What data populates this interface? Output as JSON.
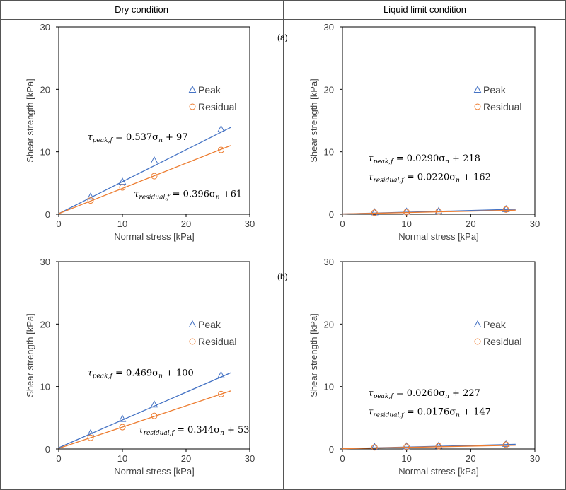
{
  "headers": {
    "left": "Dry condition",
    "right": "Liquid limit condition"
  },
  "row_labels": [
    "(a)",
    "(b)"
  ],
  "colors": {
    "peak": "#4472C4",
    "residual": "#ED7D31",
    "grid": "#808080"
  },
  "chart_data": [
    {
      "id": "a-dry",
      "type": "scatter",
      "xlabel": "Normal stress [kPa]",
      "ylabel": "Shear strength [kPa]",
      "xlim": [
        0,
        30
      ],
      "ylim": [
        0,
        30
      ],
      "xticks": [
        "0",
        "10",
        "20",
        "30"
      ],
      "yticks": [
        "0",
        "10",
        "20",
        "30"
      ],
      "legend": [
        "Peak",
        "Residual"
      ],
      "legend_position": "upper-right",
      "series": [
        {
          "name": "Peak",
          "marker": "triangle",
          "x": [
            5,
            10,
            15,
            25.5
          ],
          "y": [
            2.8,
            5.2,
            8.6,
            13.6
          ],
          "fit": {
            "x": [
              0,
              27
            ],
            "y": [
              0.1,
              13.9
            ]
          }
        },
        {
          "name": "Residual",
          "marker": "circle",
          "x": [
            5,
            10,
            15,
            25.5
          ],
          "y": [
            2.2,
            4.3,
            6.1,
            10.3
          ],
          "fit": {
            "x": [
              0,
              27
            ],
            "y": [
              0.1,
              11.0
            ]
          }
        }
      ],
      "equations": [
        {
          "sym": "τ",
          "sub": "peak,f",
          "rhs": " = 0.537σ",
          "n": "n",
          "tail": " + 97",
          "at": [
            4.5,
            11.9
          ]
        },
        {
          "sym": "τ",
          "sub": "residual,f",
          "rhs": " = 0.396σ",
          "n": "n",
          "tail": " +61",
          "at": [
            11.8,
            2.8
          ]
        }
      ]
    },
    {
      "id": "a-liquid",
      "type": "scatter",
      "xlabel": "Normal stress [kPa]",
      "ylabel": "Shear strength [kPa]",
      "xlim": [
        0,
        30
      ],
      "ylim": [
        0,
        30
      ],
      "xticks": [
        "0",
        "10",
        "20",
        "30"
      ],
      "yticks": [
        "0",
        "10",
        "20",
        "30"
      ],
      "legend": [
        "Peak",
        "Residual"
      ],
      "legend_position": "upper-right",
      "series": [
        {
          "name": "Peak",
          "marker": "triangle",
          "x": [
            5,
            10,
            15,
            25.5
          ],
          "y": [
            0.3,
            0.4,
            0.5,
            0.8
          ],
          "fit": {
            "x": [
              0,
              27
            ],
            "y": [
              0.05,
              0.8
            ]
          }
        },
        {
          "name": "Residual",
          "marker": "circle",
          "x": [
            5,
            10,
            15,
            25.5
          ],
          "y": [
            0.25,
            0.35,
            0.45,
            0.75
          ],
          "fit": {
            "x": [
              0,
              27
            ],
            "y": [
              0.05,
              0.65
            ]
          }
        }
      ],
      "equations": [
        {
          "sym": "τ",
          "sub": "peak,f",
          "rhs": " = 0.0290σ",
          "n": "n",
          "tail": " + 218",
          "at": [
            4,
            8.5
          ]
        },
        {
          "sym": "τ",
          "sub": "residual,f",
          "rhs": " = 0.0220σ",
          "n": "n",
          "tail": " + 162",
          "at": [
            4,
            5.5
          ]
        }
      ]
    },
    {
      "id": "b-dry",
      "type": "scatter",
      "xlabel": "Normal stress [kPa]",
      "ylabel": "Shear strength [kPa]",
      "xlim": [
        0,
        30
      ],
      "ylim": [
        0,
        30
      ],
      "xticks": [
        "0",
        "10",
        "20",
        "30"
      ],
      "yticks": [
        "0",
        "10",
        "20",
        "30"
      ],
      "legend": [
        "Peak",
        "Residual"
      ],
      "legend_position": "upper-right",
      "series": [
        {
          "name": "Peak",
          "marker": "triangle",
          "x": [
            5,
            10,
            15,
            25.5
          ],
          "y": [
            2.5,
            4.8,
            7.1,
            11.8
          ],
          "fit": {
            "x": [
              0,
              27
            ],
            "y": [
              0.2,
              12.2
            ]
          }
        },
        {
          "name": "Residual",
          "marker": "circle",
          "x": [
            5,
            10,
            15,
            25.5
          ],
          "y": [
            1.8,
            3.5,
            5.3,
            8.8
          ],
          "fit": {
            "x": [
              0,
              27
            ],
            "y": [
              0.1,
              9.3
            ]
          }
        }
      ],
      "equations": [
        {
          "sym": "τ",
          "sub": "peak,f",
          "rhs": " = 0.469σ",
          "n": "n",
          "tail": " + 100",
          "at": [
            4.5,
            11.7
          ]
        },
        {
          "sym": "τ",
          "sub": "residual,f",
          "rhs": " = 0.344σ",
          "n": "n",
          "tail": " + 53",
          "at": [
            12.5,
            2.6
          ]
        }
      ]
    },
    {
      "id": "b-liquid",
      "type": "scatter",
      "xlabel": "Normal stress [kPa]",
      "ylabel": "Shear strength [kPa]",
      "xlim": [
        0,
        30
      ],
      "ylim": [
        0,
        30
      ],
      "xticks": [
        "0",
        "10",
        "20",
        "30"
      ],
      "yticks": [
        "0",
        "10",
        "20",
        "30"
      ],
      "legend": [
        "Peak",
        "Residual"
      ],
      "legend_position": "upper-right",
      "series": [
        {
          "name": "Peak",
          "marker": "triangle",
          "x": [
            5,
            10,
            15,
            25.5
          ],
          "y": [
            0.3,
            0.4,
            0.5,
            0.8
          ],
          "fit": {
            "x": [
              0,
              27
            ],
            "y": [
              0.05,
              0.75
            ]
          }
        },
        {
          "name": "Residual",
          "marker": "circle",
          "x": [
            5,
            10,
            15,
            25.5
          ],
          "y": [
            0.25,
            0.35,
            0.45,
            0.7
          ],
          "fit": {
            "x": [
              0,
              27
            ],
            "y": [
              0.05,
              0.6
            ]
          }
        }
      ],
      "equations": [
        {
          "sym": "τ",
          "sub": "peak,f",
          "rhs": " = 0.0260σ",
          "n": "n",
          "tail": " + 227",
          "at": [
            4,
            8.5
          ]
        },
        {
          "sym": "τ",
          "sub": "residual,f",
          "rhs": " = 0.0176σ",
          "n": "n",
          "tail": " + 147",
          "at": [
            4,
            5.5
          ]
        }
      ]
    }
  ]
}
